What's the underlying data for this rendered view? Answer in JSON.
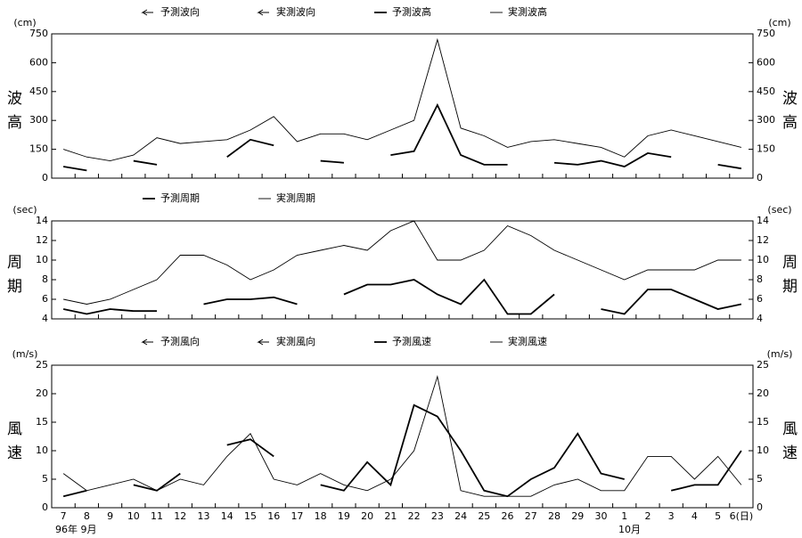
{
  "chart_data": [
    {
      "type": "line",
      "unit": "(cm)",
      "y_label": "波高",
      "direction_labels": [
        "予測波向",
        "実測波向"
      ],
      "ylim": [
        0,
        750
      ],
      "yticks": [
        0,
        150,
        300,
        450,
        600,
        750
      ],
      "series": [
        {
          "name": "予測波高",
          "color": "#000000",
          "width": 1.8,
          "values": [
            60,
            40,
            null,
            90,
            70,
            null,
            null,
            110,
            200,
            170,
            null,
            90,
            80,
            null,
            120,
            140,
            380,
            120,
            70,
            70,
            null,
            80,
            70,
            90,
            60,
            130,
            110,
            null,
            70,
            50
          ]
        },
        {
          "name": "実測波高",
          "color": "#000000",
          "width": 0.9,
          "values": [
            150,
            110,
            90,
            120,
            210,
            180,
            190,
            200,
            250,
            320,
            190,
            230,
            230,
            200,
            250,
            300,
            720,
            260,
            220,
            160,
            190,
            200,
            180,
            160,
            110,
            220,
            250,
            220,
            190,
            160
          ]
        }
      ]
    },
    {
      "type": "line",
      "unit": "(sec)",
      "y_label": "周期",
      "ylim": [
        4,
        14
      ],
      "yticks": [
        4,
        6,
        8,
        10,
        12,
        14
      ],
      "series": [
        {
          "name": "予測周期",
          "color": "#000000",
          "width": 1.8,
          "values": [
            5,
            4.5,
            5,
            4.8,
            4.8,
            null,
            5.5,
            6,
            6,
            6.2,
            5.5,
            null,
            6.5,
            7.5,
            7.5,
            8,
            6.5,
            5.5,
            8,
            4.5,
            4.5,
            6.5,
            null,
            5,
            4.5,
            7,
            7,
            6,
            5,
            5.5
          ]
        },
        {
          "name": "実測周期",
          "color": "#000000",
          "width": 0.9,
          "values": [
            6,
            5.5,
            6,
            7,
            8,
            10.5,
            10.5,
            9.5,
            8,
            9,
            10.5,
            11,
            11.5,
            11,
            13,
            14,
            10,
            10,
            11,
            13.5,
            12.5,
            11,
            10,
            9,
            8,
            9,
            9,
            9,
            10,
            10
          ]
        }
      ]
    },
    {
      "type": "line",
      "unit": "(m/s)",
      "y_label": "風速",
      "direction_labels": [
        "予測風向",
        "実測風向"
      ],
      "ylim": [
        0,
        25
      ],
      "yticks": [
        0,
        5,
        10,
        15,
        20,
        25
      ],
      "categories": [
        "7",
        "8",
        "9",
        "10",
        "11",
        "12",
        "13",
        "14",
        "15",
        "16",
        "17",
        "18",
        "19",
        "20",
        "21",
        "22",
        "23",
        "24",
        "25",
        "26",
        "27",
        "28",
        "29",
        "30",
        "1",
        "2",
        "3",
        "4",
        "5",
        "6(日)"
      ],
      "x_labels": [
        "96年 9月",
        "10月"
      ],
      "series": [
        {
          "name": "予測風速",
          "color": "#000000",
          "width": 1.8,
          "values": [
            2,
            3,
            null,
            4,
            3,
            6,
            null,
            11,
            12,
            9,
            null,
            4,
            3,
            8,
            4,
            18,
            16,
            10,
            3,
            2,
            5,
            7,
            13,
            6,
            5,
            null,
            3,
            4,
            4,
            10
          ]
        },
        {
          "name": "実測風速",
          "color": "#000000",
          "width": 0.9,
          "values": [
            6,
            3,
            4,
            5,
            3,
            5,
            4,
            9,
            13,
            5,
            4,
            6,
            4,
            3,
            5,
            10,
            23,
            3,
            2,
            2,
            2,
            4,
            5,
            3,
            3,
            9,
            9,
            5,
            9,
            4
          ]
        }
      ]
    }
  ]
}
